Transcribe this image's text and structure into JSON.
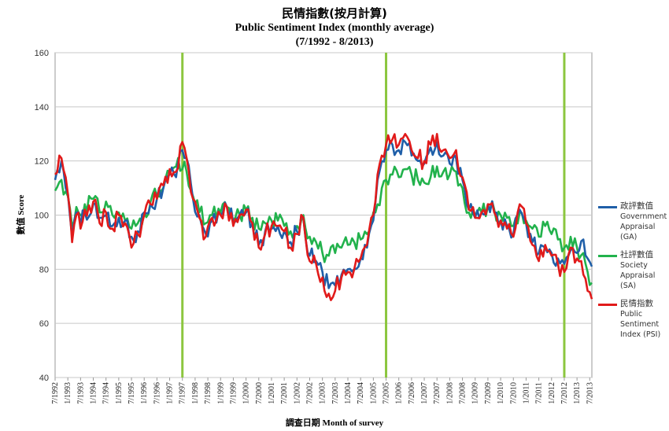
{
  "title_zh": "民情指數(按月計算)",
  "title_en": "Public Sentiment Index (monthly  average)",
  "period": "(7/1992 - 8/2013)",
  "chart_data": {
    "type": "line",
    "xlabel": "調查日期  Month  of  survey",
    "ylabel": "數值 Score",
    "ylim": [
      40,
      160
    ],
    "yticks": [
      40,
      60,
      80,
      100,
      120,
      140,
      160
    ],
    "grid": true,
    "legend_position": "right",
    "x_tick_labels": [
      "7/1992",
      "1/1993",
      "7/1993",
      "1/1994",
      "7/1994",
      "1/1995",
      "7/1995",
      "1/1996",
      "7/1996",
      "1/1997",
      "7/1997",
      "1/1998",
      "7/1998",
      "1/1999",
      "7/1999",
      "1/2000",
      "7/2000",
      "1/2001",
      "7/2001",
      "1/2002",
      "7/2002",
      "1/2003",
      "7/2003",
      "1/2004",
      "7/2004",
      "1/2005",
      "7/2005",
      "1/2006",
      "7/2006",
      "1/2007",
      "7/2007",
      "1/2008",
      "7/2008",
      "1/2009",
      "7/2009",
      "1/2010",
      "7/2010",
      "1/2011",
      "7/2011",
      "1/2012",
      "7/2012",
      "1/2013",
      "7/2013"
    ],
    "vertical_markers": [
      "7/1997",
      "7/2005",
      "7/2012"
    ],
    "series": [
      {
        "name": "政評數值 Government Appraisal (GA)",
        "color": "#1f5fa8",
        "anchors": [
          [
            "7/1992",
            113
          ],
          [
            "10/1992",
            120
          ],
          [
            "1/1993",
            108
          ],
          [
            "3/1993",
            92
          ],
          [
            "5/1993",
            101
          ],
          [
            "7/1993",
            96
          ],
          [
            "9/1993",
            101
          ],
          [
            "1/1994",
            104
          ],
          [
            "4/1994",
            99
          ],
          [
            "7/1994",
            100
          ],
          [
            "10/1994",
            96
          ],
          [
            "1/1995",
            99
          ],
          [
            "4/1995",
            98
          ],
          [
            "7/1995",
            92
          ],
          [
            "10/1995",
            94
          ],
          [
            "1/1996",
            101
          ],
          [
            "4/1996",
            104
          ],
          [
            "7/1996",
            106
          ],
          [
            "10/1996",
            110
          ],
          [
            "1/1997",
            115
          ],
          [
            "4/1997",
            114
          ],
          [
            "7/1997",
            124
          ],
          [
            "9/1997",
            121
          ],
          [
            "12/1997",
            106
          ],
          [
            "3/1998",
            100
          ],
          [
            "6/1998",
            93
          ],
          [
            "9/1998",
            98
          ],
          [
            "1/1999",
            100
          ],
          [
            "4/1999",
            103
          ],
          [
            "7/1999",
            97
          ],
          [
            "10/1999",
            100
          ],
          [
            "1/2000",
            101
          ],
          [
            "4/2000",
            97
          ],
          [
            "7/2000",
            89
          ],
          [
            "10/2000",
            94
          ],
          [
            "1/2001",
            95
          ],
          [
            "4/2001",
            96
          ],
          [
            "7/2001",
            94
          ],
          [
            "10/2001",
            90
          ],
          [
            "1/2002",
            94
          ],
          [
            "4/2002",
            99
          ],
          [
            "7/2002",
            85
          ],
          [
            "10/2002",
            83
          ],
          [
            "1/2003",
            79
          ],
          [
            "4/2003",
            73
          ],
          [
            "7/2003",
            74
          ],
          [
            "10/2003",
            78
          ],
          [
            "1/2004",
            80
          ],
          [
            "4/2004",
            80
          ],
          [
            "7/2004",
            84
          ],
          [
            "10/2004",
            88
          ],
          [
            "1/2005",
            98
          ],
          [
            "3/2005",
            113
          ],
          [
            "5/2005",
            120
          ],
          [
            "7/2005",
            124
          ],
          [
            "10/2005",
            126
          ],
          [
            "1/2006",
            124
          ],
          [
            "4/2006",
            127
          ],
          [
            "7/2006",
            122
          ],
          [
            "10/2006",
            120
          ],
          [
            "1/2007",
            119
          ],
          [
            "4/2007",
            125
          ],
          [
            "7/2007",
            127
          ],
          [
            "10/2007",
            122
          ],
          [
            "1/2008",
            119
          ],
          [
            "4/2008",
            121
          ],
          [
            "7/2008",
            113
          ],
          [
            "10/2008",
            102
          ],
          [
            "1/2009",
            99
          ],
          [
            "4/2009",
            101
          ],
          [
            "7/2009",
            104
          ],
          [
            "10/2009",
            101
          ],
          [
            "1/2010",
            98
          ],
          [
            "4/2010",
            96
          ],
          [
            "7/2010",
            93
          ],
          [
            "10/2010",
            102
          ],
          [
            "1/2011",
            97
          ],
          [
            "4/2011",
            90
          ],
          [
            "7/2011",
            86
          ],
          [
            "10/2011",
            88
          ],
          [
            "1/2012",
            86
          ],
          [
            "4/2012",
            84
          ],
          [
            "7/2012",
            82
          ],
          [
            "10/2012",
            87
          ],
          [
            "1/2013",
            86
          ],
          [
            "4/2013",
            91
          ],
          [
            "6/2013",
            84
          ],
          [
            "8/2013",
            81
          ]
        ]
      },
      {
        "name": "社評數值 Society Appraisal (SA)",
        "color": "#22b24c",
        "anchors": [
          [
            "7/1992",
            109
          ],
          [
            "10/1992",
            113
          ],
          [
            "1/1993",
            107
          ],
          [
            "3/1993",
            96
          ],
          [
            "5/1993",
            103
          ],
          [
            "7/1993",
            100
          ],
          [
            "9/1993",
            104
          ],
          [
            "1/1994",
            106
          ],
          [
            "4/1994",
            101
          ],
          [
            "7/1994",
            105
          ],
          [
            "10/1994",
            100
          ],
          [
            "1/1995",
            101
          ],
          [
            "4/1995",
            98
          ],
          [
            "7/1995",
            95
          ],
          [
            "10/1995",
            97
          ],
          [
            "1/1996",
            101
          ],
          [
            "4/1996",
            105
          ],
          [
            "7/1996",
            107
          ],
          [
            "10/1996",
            110
          ],
          [
            "1/1997",
            116
          ],
          [
            "4/1997",
            118
          ],
          [
            "7/1997",
            117
          ],
          [
            "9/1997",
            116
          ],
          [
            "12/1997",
            107
          ],
          [
            "3/1998",
            101
          ],
          [
            "6/1998",
            97
          ],
          [
            "9/1998",
            100
          ],
          [
            "1/1999",
            101
          ],
          [
            "4/1999",
            103
          ],
          [
            "7/1999",
            98
          ],
          [
            "10/1999",
            100
          ],
          [
            "1/2000",
            102
          ],
          [
            "4/2000",
            99
          ],
          [
            "7/2000",
            95
          ],
          [
            "10/2000",
            97
          ],
          [
            "1/2001",
            98
          ],
          [
            "4/2001",
            98
          ],
          [
            "7/2001",
            96
          ],
          [
            "10/2001",
            94
          ],
          [
            "1/2002",
            96
          ],
          [
            "4/2002",
            100
          ],
          [
            "7/2002",
            92
          ],
          [
            "10/2002",
            90
          ],
          [
            "1/2003",
            86
          ],
          [
            "4/2003",
            85
          ],
          [
            "7/2003",
            86
          ],
          [
            "10/2003",
            88
          ],
          [
            "1/2004",
            89
          ],
          [
            "4/2004",
            90
          ],
          [
            "7/2004",
            91
          ],
          [
            "10/2004",
            93
          ],
          [
            "1/2005",
            101
          ],
          [
            "3/2005",
            104
          ],
          [
            "5/2005",
            110
          ],
          [
            "7/2005",
            113
          ],
          [
            "10/2005",
            115
          ],
          [
            "1/2006",
            114
          ],
          [
            "4/2006",
            117
          ],
          [
            "7/2006",
            115
          ],
          [
            "10/2006",
            113
          ],
          [
            "1/2007",
            112
          ],
          [
            "4/2007",
            114
          ],
          [
            "7/2007",
            118
          ],
          [
            "10/2007",
            116
          ],
          [
            "1/2008",
            115
          ],
          [
            "4/2008",
            116
          ],
          [
            "7/2008",
            110
          ],
          [
            "10/2008",
            101
          ],
          [
            "1/2009",
            100
          ],
          [
            "4/2009",
            101
          ],
          [
            "7/2009",
            103
          ],
          [
            "10/2009",
            102
          ],
          [
            "1/2010",
            100
          ],
          [
            "4/2010",
            99
          ],
          [
            "7/2010",
            96
          ],
          [
            "10/2010",
            101
          ],
          [
            "1/2011",
            98
          ],
          [
            "4/2011",
            95
          ],
          [
            "7/2011",
            92
          ],
          [
            "10/2011",
            96
          ],
          [
            "1/2012",
            93
          ],
          [
            "4/2012",
            91
          ],
          [
            "7/2012",
            88
          ],
          [
            "10/2012",
            92
          ],
          [
            "1/2013",
            88
          ],
          [
            "4/2013",
            86
          ],
          [
            "6/2013",
            79
          ],
          [
            "8/2013",
            75
          ]
        ]
      },
      {
        "name": "民情指數 Public Sentiment Index (PSI)",
        "color": "#e11a1a",
        "anchors": [
          [
            "7/1992",
            115
          ],
          [
            "10/1992",
            121
          ],
          [
            "1/1993",
            108
          ],
          [
            "3/1993",
            90
          ],
          [
            "5/1993",
            100
          ],
          [
            "7/1993",
            95
          ],
          [
            "9/1993",
            102
          ],
          [
            "1/1994",
            105
          ],
          [
            "4/1994",
            97
          ],
          [
            "7/1994",
            101
          ],
          [
            "10/1994",
            95
          ],
          [
            "1/1995",
            100
          ],
          [
            "4/1995",
            97
          ],
          [
            "7/1995",
            88
          ],
          [
            "10/1995",
            93
          ],
          [
            "1/1996",
            100
          ],
          [
            "4/1996",
            104
          ],
          [
            "7/1996",
            106
          ],
          [
            "10/1996",
            111
          ],
          [
            "1/1997",
            117
          ],
          [
            "4/1997",
            116
          ],
          [
            "7/1997",
            127
          ],
          [
            "9/1997",
            121
          ],
          [
            "12/1997",
            106
          ],
          [
            "3/1998",
            99
          ],
          [
            "6/1998",
            92
          ],
          [
            "9/1998",
            99
          ],
          [
            "1/1999",
            100
          ],
          [
            "4/1999",
            103
          ],
          [
            "7/1999",
            96
          ],
          [
            "10/1999",
            100
          ],
          [
            "1/2000",
            102
          ],
          [
            "4/2000",
            97
          ],
          [
            "7/2000",
            88
          ],
          [
            "10/2000",
            93
          ],
          [
            "1/2001",
            96
          ],
          [
            "4/2001",
            96
          ],
          [
            "7/2001",
            94
          ],
          [
            "10/2001",
            88
          ],
          [
            "1/2002",
            93
          ],
          [
            "4/2002",
            99
          ],
          [
            "7/2002",
            83
          ],
          [
            "10/2002",
            82
          ],
          [
            "1/2003",
            77
          ],
          [
            "4/2003",
            71
          ],
          [
            "7/2003",
            72
          ],
          [
            "10/2003",
            77
          ],
          [
            "1/2004",
            79
          ],
          [
            "4/2004",
            80
          ],
          [
            "7/2004",
            84
          ],
          [
            "10/2004",
            89
          ],
          [
            "1/2005",
            100
          ],
          [
            "3/2005",
            115
          ],
          [
            "5/2005",
            122
          ],
          [
            "7/2005",
            126
          ],
          [
            "10/2005",
            128
          ],
          [
            "1/2006",
            126
          ],
          [
            "4/2006",
            130
          ],
          [
            "7/2006",
            124
          ],
          [
            "10/2006",
            121
          ],
          [
            "1/2007",
            120
          ],
          [
            "4/2007",
            126
          ],
          [
            "7/2007",
            130
          ],
          [
            "10/2007",
            124
          ],
          [
            "1/2008",
            121
          ],
          [
            "4/2008",
            124
          ],
          [
            "7/2008",
            114
          ],
          [
            "10/2008",
            102
          ],
          [
            "1/2009",
            99
          ],
          [
            "4/2009",
            101
          ],
          [
            "7/2009",
            104
          ],
          [
            "10/2009",
            101
          ],
          [
            "1/2010",
            98
          ],
          [
            "4/2010",
            95
          ],
          [
            "7/2010",
            92
          ],
          [
            "10/2010",
            104
          ],
          [
            "1/2011",
            97
          ],
          [
            "4/2011",
            89
          ],
          [
            "7/2011",
            83
          ],
          [
            "10/2011",
            89
          ],
          [
            "1/2012",
            85
          ],
          [
            "4/2012",
            82
          ],
          [
            "7/2012",
            79
          ],
          [
            "10/2012",
            88
          ],
          [
            "1/2013",
            84
          ],
          [
            "4/2013",
            78
          ],
          [
            "6/2013",
            72
          ],
          [
            "8/2013",
            69
          ]
        ]
      }
    ]
  },
  "legend": [
    {
      "zh": "政評數值",
      "en": "Government\nAppraisal\n(GA)",
      "color": "#1f5fa8"
    },
    {
      "zh": "社評數值",
      "en": "Society\nAppraisal\n(SA)",
      "color": "#22b24c"
    },
    {
      "zh": "民情指數",
      "en": "Public\nSentiment\nIndex (PSI)",
      "color": "#e11a1a"
    }
  ]
}
